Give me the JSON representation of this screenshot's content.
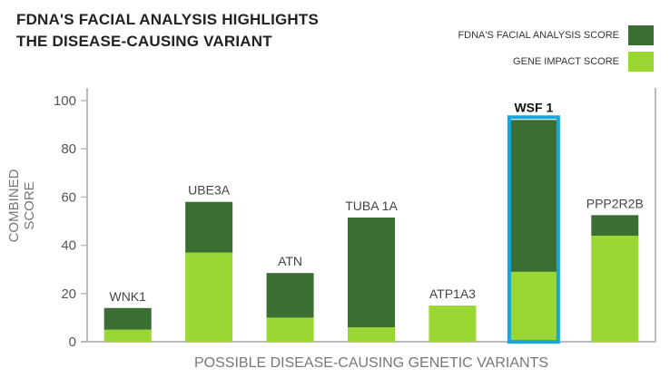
{
  "chart_data": {
    "type": "bar",
    "stacked": true,
    "title_lines": [
      "FDNA'S FACIAL ANALYSIS HIGHLIGHTS",
      "THE DISEASE-CAUSING VARIANT"
    ],
    "xlabel": "POSSIBLE DISEASE-CAUSING GENETIC VARIANTS",
    "ylabel": "COMBINED SCORE",
    "ylim": [
      0,
      100
    ],
    "yticks": [
      "0",
      "20",
      "40",
      "60",
      "80",
      "100"
    ],
    "categories": [
      "WNK1",
      "UBE3A",
      "ATN",
      "TUBA 1A",
      "ATP1A3",
      "WSF 1",
      "PPP2R2B"
    ],
    "highlighted": "WSF 1",
    "legend": "top-right",
    "series": [
      {
        "name": "GENE IMPACT SCORE",
        "color": "#9ad733",
        "values": [
          5,
          37,
          10,
          6,
          15,
          29,
          44
        ]
      },
      {
        "name": "FDNA'S FACIAL ANALYSIS SCORE",
        "color": "#3b6e33",
        "values": [
          9,
          21,
          18.5,
          45.5,
          0,
          63,
          8.5
        ]
      }
    ],
    "highlight_color": "#16a6e0"
  }
}
